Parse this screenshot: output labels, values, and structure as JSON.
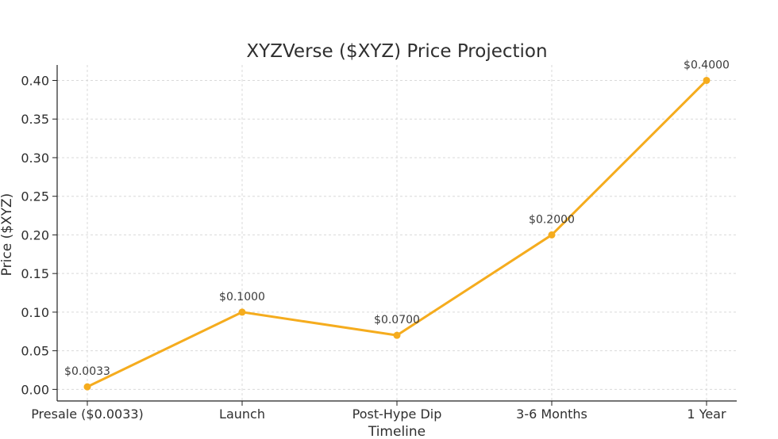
{
  "chart_data": {
    "type": "line",
    "title": "XYZVerse ($XYZ) Price Projection",
    "xlabel": "Timeline",
    "ylabel": "Price ($XYZ)",
    "categories": [
      "Presale ($0.0033)",
      "Launch",
      "Post-Hype Dip",
      "3-6 Months",
      "1 Year"
    ],
    "series": [
      {
        "values": [
          0.0033,
          0.1,
          0.07,
          0.2,
          0.4
        ],
        "labels": [
          "$0.0033",
          "$0.1000",
          "$0.0700",
          "$0.2000",
          "$0.4000"
        ],
        "color": "#f5ac1e"
      }
    ],
    "ylim": [
      -0.015,
      0.42
    ],
    "yticks": [
      "0.00",
      "0.05",
      "0.10",
      "0.15",
      "0.20",
      "0.25",
      "0.30",
      "0.35",
      "0.40"
    ],
    "ytick_values": [
      0,
      0.05,
      0.1,
      0.15,
      0.2,
      0.25,
      0.3,
      0.35,
      0.4
    ],
    "grid": true
  }
}
